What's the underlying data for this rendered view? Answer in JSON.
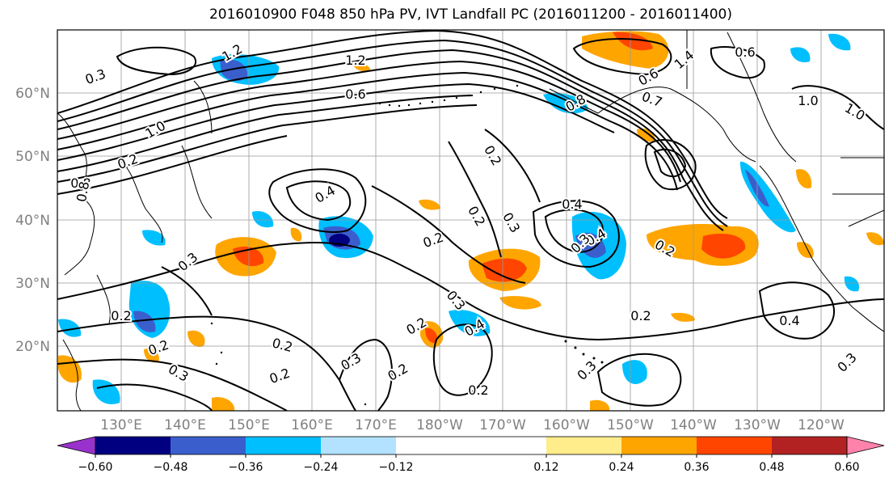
{
  "title": "2016010900 F048 850 hPa PV, IVT Landfall PC (2016011200 - 2016011400)",
  "lat_labels": [
    "60°N",
    "50°N",
    "40°N",
    "30°N",
    "20°N"
  ],
  "lon_labels": [
    "130°E",
    "140°E",
    "150°E",
    "160°E",
    "170°E",
    "180°W",
    "170°W",
    "160°W",
    "150°W",
    "140°W",
    "130°W",
    "120°W"
  ],
  "colorbar": {
    "colors": [
      "#9932CC",
      "#000080",
      "#3A5FCD",
      "#00BFFF",
      "#B2E2FF",
      "#FFFFFF",
      "#FFFFFF",
      "#FFEC8B",
      "#FFA500",
      "#FF4500",
      "#B22222",
      "#FF82AB"
    ],
    "tick_labels": [
      "−0.60",
      "−0.48",
      "−0.36",
      "−0.24",
      "−0.12",
      "0.12",
      "0.24",
      "0.36",
      "0.48",
      "0.60"
    ]
  },
  "contour_labels": [
    "1.2",
    "0.6",
    "1.0",
    "1.2",
    "0.8",
    "0.6",
    "0.8",
    "0.7",
    "0.6",
    "1.4",
    "1.0",
    "0.2",
    "0.4",
    "0.4",
    "0.3",
    "0.2",
    "0.2",
    "0.3",
    "0.4",
    "0.2",
    "0.2",
    "0.2",
    "0.3",
    "0.3",
    "0.2",
    "0.2",
    "0.4",
    "0.2",
    "0.3",
    "0.2",
    "0.3",
    "0.2",
    "0.4",
    "0.3",
    "0.2",
    "0.3",
    "0.3",
    "0.2",
    "0.8",
    "1.0"
  ]
}
